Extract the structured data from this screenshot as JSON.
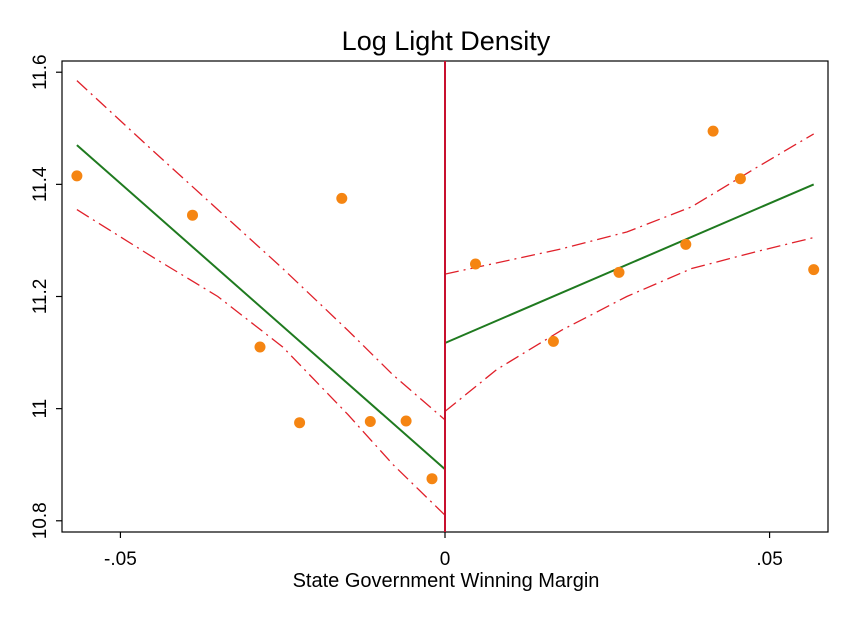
{
  "chart_data": {
    "type": "scatter",
    "title": "Log Light Density",
    "xlabel": "State Government Winning Margin",
    "ylabel": "",
    "xlim": [
      -0.059,
      0.059
    ],
    "ylim": [
      10.78,
      11.62
    ],
    "xticks": [
      -0.05,
      0,
      0.05
    ],
    "xtick_labels": [
      "-.05",
      "0",
      ".05"
    ],
    "yticks": [
      10.8,
      11,
      11.2,
      11.4,
      11.6
    ],
    "ytick_labels": [
      "10.8",
      "11",
      "11.2",
      "11.4",
      "11.6"
    ],
    "grid": false,
    "cutoff_x": 0,
    "points": {
      "x": [
        -0.0567,
        -0.0389,
        -0.0285,
        -0.0224,
        -0.0159,
        -0.0115,
        -0.006,
        -0.002,
        0.0047,
        0.0167,
        0.0268,
        0.0371,
        0.0413,
        0.0455,
        0.0568
      ],
      "y": [
        11.415,
        11.345,
        11.11,
        10.975,
        11.375,
        10.977,
        10.978,
        10.875,
        11.258,
        11.12,
        11.243,
        11.293,
        11.495,
        11.41,
        11.248
      ]
    },
    "fit_left": {
      "x": [
        -0.0567,
        0
      ],
      "y": [
        11.47,
        10.892
      ]
    },
    "fit_right": {
      "x": [
        0,
        0.0568
      ],
      "y": [
        11.117,
        11.4
      ]
    },
    "ci_left_upper": {
      "x": [
        -0.0567,
        -0.045,
        -0.035,
        -0.025,
        -0.015,
        -0.008,
        0
      ],
      "y": [
        11.585,
        11.46,
        11.355,
        11.25,
        11.14,
        11.06,
        10.98
      ]
    },
    "ci_left_lower": {
      "x": [
        -0.0567,
        -0.045,
        -0.035,
        -0.025,
        -0.015,
        -0.008,
        0
      ],
      "y": [
        11.355,
        11.27,
        11.2,
        11.11,
        10.99,
        10.9,
        10.81
      ]
    },
    "ci_right_upper": {
      "x": [
        0,
        0.008,
        0.018,
        0.028,
        0.038,
        0.048,
        0.0568
      ],
      "y": [
        11.24,
        11.26,
        11.285,
        11.315,
        11.36,
        11.43,
        11.49
      ]
    },
    "ci_right_lower": {
      "x": [
        0,
        0.008,
        0.018,
        0.028,
        0.038,
        0.048,
        0.0568
      ],
      "y": [
        10.995,
        11.07,
        11.14,
        11.2,
        11.25,
        11.28,
        11.305
      ]
    },
    "colors": {
      "points": "#f58512",
      "fit": "#1f7a1f",
      "ci": "#e0202a",
      "cutoff": "#c8102e",
      "axes": "#000000"
    }
  }
}
